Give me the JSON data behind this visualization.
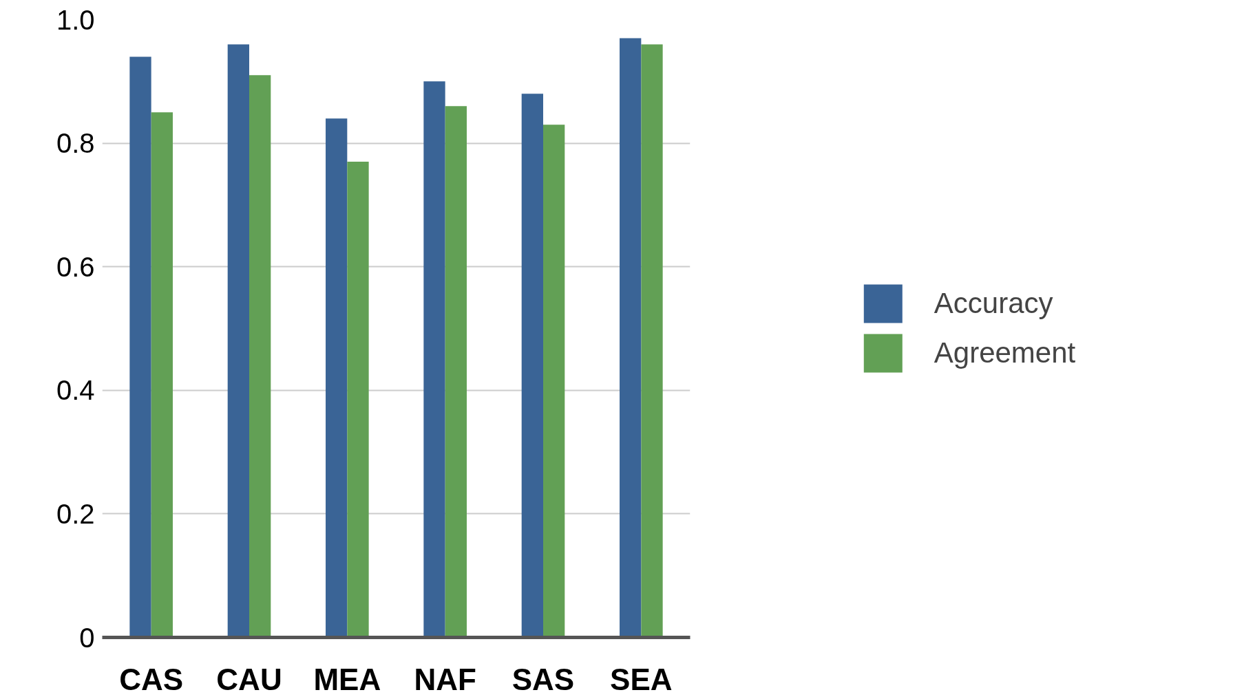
{
  "chart_data": {
    "type": "bar",
    "categories": [
      "CAS",
      "CAU",
      "MEA",
      "NAF",
      "SAS",
      "SEA"
    ],
    "series": [
      {
        "name": "Accuracy",
        "color": "#3a6496",
        "values": [
          0.94,
          0.96,
          0.84,
          0.9,
          0.88,
          0.97
        ]
      },
      {
        "name": "Agreement",
        "color": "#62a055",
        "values": [
          0.85,
          0.91,
          0.77,
          0.86,
          0.83,
          0.96
        ]
      }
    ],
    "ylim": [
      0,
      1.0
    ],
    "yticks": [
      0,
      0.2,
      0.4,
      0.6,
      0.8,
      {
        "value": 1.0,
        "label": "1.0"
      }
    ],
    "grid": "y",
    "legend": "right"
  }
}
